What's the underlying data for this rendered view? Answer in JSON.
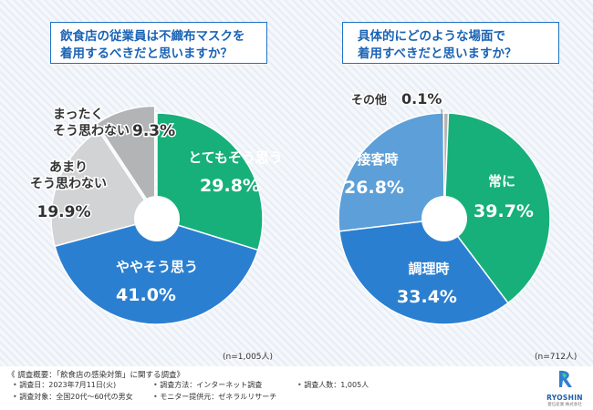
{
  "colors": {
    "green": "#17b07a",
    "blue_dark": "#2b7fd0",
    "blue_light": "#5d9fd8",
    "gray_light": "#d2d3d5",
    "gray_mid": "#b3b4b6",
    "accent": "#1f73c6"
  },
  "chart_data": [
    {
      "type": "pie",
      "title_lines": [
        "飲食店の従業員は不織布マスクを",
        "着用するべきだと思いますか？"
      ],
      "n_label": "(n=1,005人)",
      "slices": [
        {
          "label": "とてもそう思う",
          "label_lines": [
            "とてもそう思う"
          ],
          "value": 29.8,
          "value_text": "29.8%",
          "color": "#17b07a"
        },
        {
          "label": "ややそう思う",
          "label_lines": [
            "ややそう思う"
          ],
          "value": 41.0,
          "value_text": "41.0%",
          "color": "#2b7fd0"
        },
        {
          "label": "あまりそう思わない",
          "label_lines": [
            "あまり",
            "そう思わない"
          ],
          "value": 19.9,
          "value_text": "19.9%",
          "color": "#d2d3d5"
        },
        {
          "label": "まったくそう思わない",
          "label_lines": [
            "まったく",
            "そう思わない"
          ],
          "value": 9.3,
          "value_text": "9.3%",
          "color": "#b3b4b6"
        }
      ]
    },
    {
      "type": "pie",
      "title_lines": [
        "具体的にどのような場面で",
        "着用すべきだと思いますか？"
      ],
      "n_label": "(n=712人)",
      "slices": [
        {
          "label": "常に",
          "label_lines": [
            "常に"
          ],
          "value": 39.7,
          "value_text": "39.7%",
          "color": "#17b07a"
        },
        {
          "label": "調理時",
          "label_lines": [
            "調理時"
          ],
          "value": 33.4,
          "value_text": "33.4%",
          "color": "#2b7fd0"
        },
        {
          "label": "接客時",
          "label_lines": [
            "接客時"
          ],
          "value": 26.8,
          "value_text": "26.8%",
          "color": "#5d9fd8"
        },
        {
          "label": "その他",
          "label_lines": [
            "その他"
          ],
          "value": 0.1,
          "value_text": "0.1%",
          "color": "#b3b4b6"
        }
      ]
    }
  ],
  "footer": {
    "title": "《 調査概要：「飲食店の感染対策」に関する調査》",
    "items": [
      "調査日：2023年7月11日(火)",
      "調査方法：インターネット調査",
      "調査人数：1,005人",
      "調査対象：全国20代〜60代の男女",
      "モニター提供元：ゼネラルリサーチ"
    ]
  },
  "logo": {
    "name": "RYOSHIN",
    "sub": "菱信産業 株式会社"
  }
}
